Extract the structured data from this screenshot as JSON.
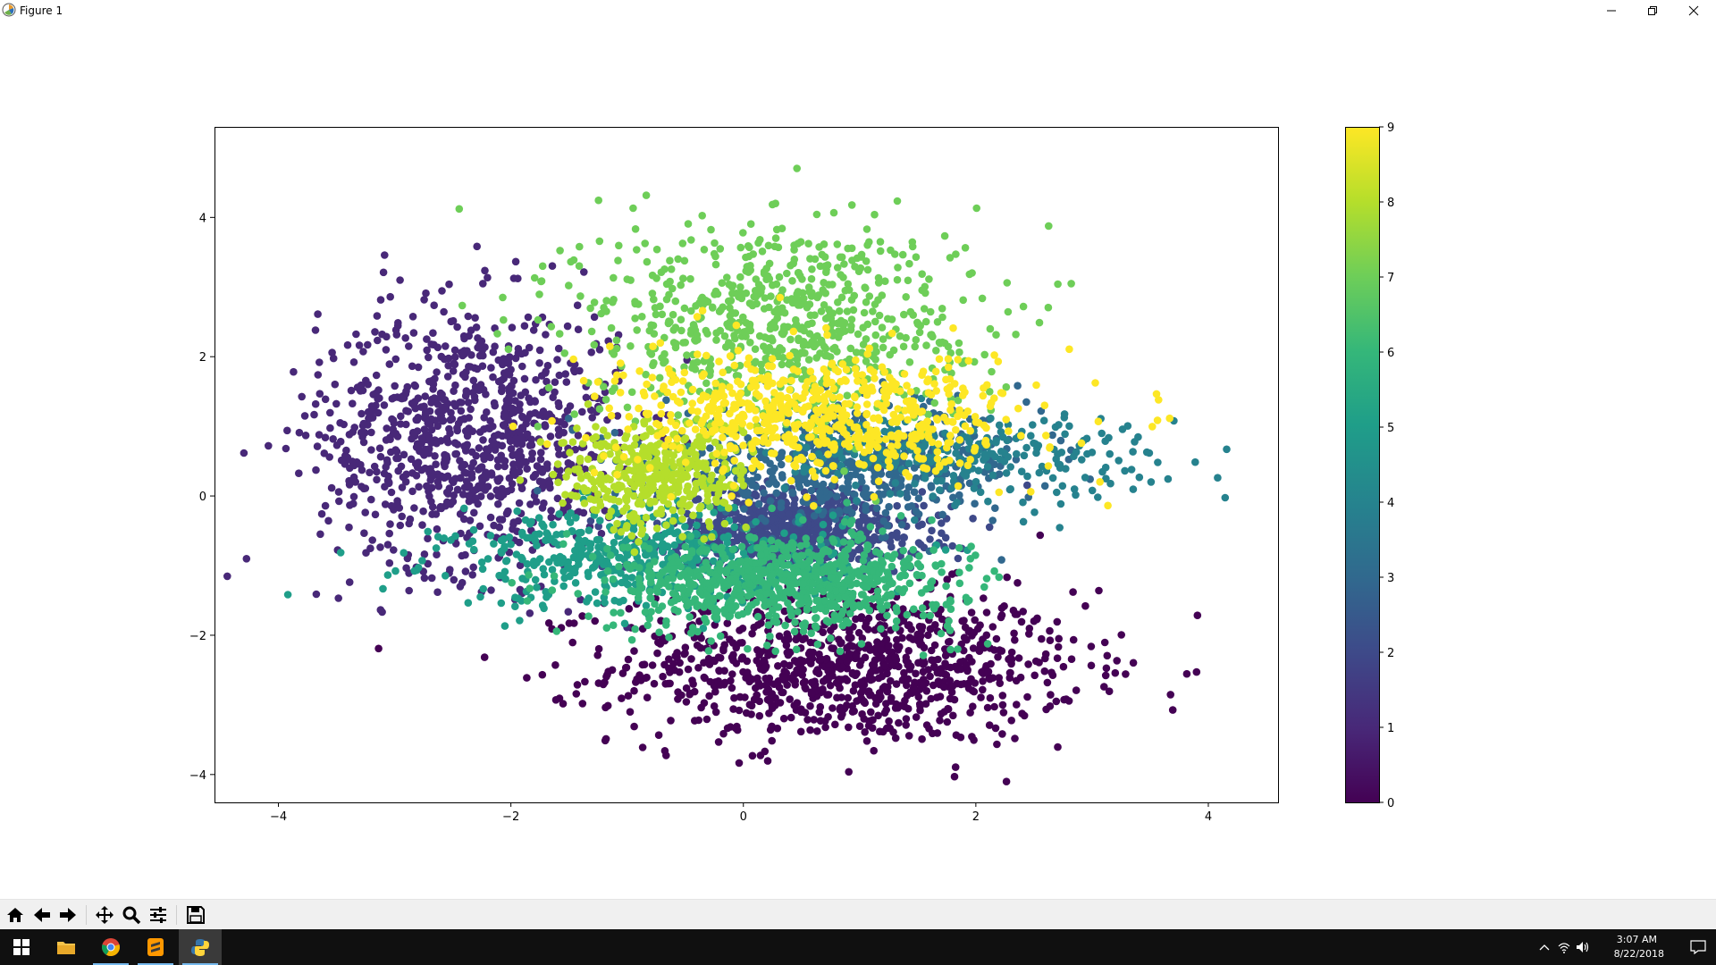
{
  "window": {
    "title": "Figure 1",
    "minimize_icon": "minimize-icon",
    "restore_icon": "restore-icon",
    "close_icon": "close-icon"
  },
  "toolbar": {
    "buttons": [
      {
        "name": "home-button",
        "icon": "home-icon"
      },
      {
        "name": "back-button",
        "icon": "arrow-left-icon"
      },
      {
        "name": "forward-button",
        "icon": "arrow-right-icon"
      },
      {
        "name": "pan-button",
        "icon": "move-icon"
      },
      {
        "name": "zoom-button",
        "icon": "magnifier-icon"
      },
      {
        "name": "configure-subplots-button",
        "icon": "sliders-icon"
      },
      {
        "name": "save-button",
        "icon": "floppy-icon"
      }
    ]
  },
  "taskbar": {
    "apps": [
      "windows-start-icon",
      "file-explorer-icon",
      "chrome-icon",
      "sublime-text-icon",
      "python-icon"
    ],
    "time": "3:07 AM",
    "date": "8/22/2018"
  },
  "chart_data": {
    "type": "scatter",
    "title": "",
    "xlabel": "",
    "ylabel": "",
    "xlim": [
      -4.55,
      4.6
    ],
    "ylim": [
      -4.4,
      5.3
    ],
    "xticks": [
      -4,
      -2,
      0,
      2,
      4
    ],
    "yticks": [
      -4,
      -2,
      0,
      2,
      4
    ],
    "colormap": "viridis",
    "colorbar": {
      "min": 0,
      "max": 9,
      "ticks": [
        0,
        1,
        2,
        3,
        4,
        5,
        6,
        7,
        8,
        9
      ]
    },
    "grid": false,
    "clusters": [
      {
        "label": 0,
        "color": "#440154",
        "center": [
          0.9,
          -2.45
        ],
        "spread": [
          1.0,
          0.55
        ],
        "count": 1000
      },
      {
        "label": 1,
        "color": "#482878",
        "center": [
          -2.35,
          0.85
        ],
        "spread": [
          0.65,
          0.95
        ],
        "count": 950
      },
      {
        "label": 2,
        "color": "#3e4989",
        "center": [
          0.45,
          -0.5
        ],
        "spread": [
          0.55,
          0.3
        ],
        "count": 750
      },
      {
        "label": 3,
        "color": "#31688e",
        "center": [
          0.9,
          0.45
        ],
        "spread": [
          0.8,
          0.4
        ],
        "count": 550
      },
      {
        "label": 4,
        "color": "#26828e",
        "center": [
          1.8,
          0.6
        ],
        "spread": [
          0.9,
          0.3
        ],
        "count": 300
      },
      {
        "label": 5,
        "color": "#1f9e89",
        "center": [
          -0.85,
          -0.9
        ],
        "spread": [
          0.85,
          0.35
        ],
        "count": 500
      },
      {
        "label": 6,
        "color": "#35b779",
        "center": [
          0.35,
          -1.25
        ],
        "spread": [
          0.75,
          0.35
        ],
        "count": 750
      },
      {
        "label": 7,
        "color": "#6ece58",
        "center": [
          0.3,
          2.5
        ],
        "spread": [
          0.85,
          0.75
        ],
        "count": 750
      },
      {
        "label": 8,
        "color": "#b5de2b",
        "center": [
          -0.75,
          0.3
        ],
        "spread": [
          0.4,
          0.4
        ],
        "count": 400
      },
      {
        "label": 9,
        "color": "#fde725",
        "center": [
          0.7,
          1.15
        ],
        "spread": [
          0.9,
          0.45
        ],
        "count": 650
      }
    ]
  }
}
